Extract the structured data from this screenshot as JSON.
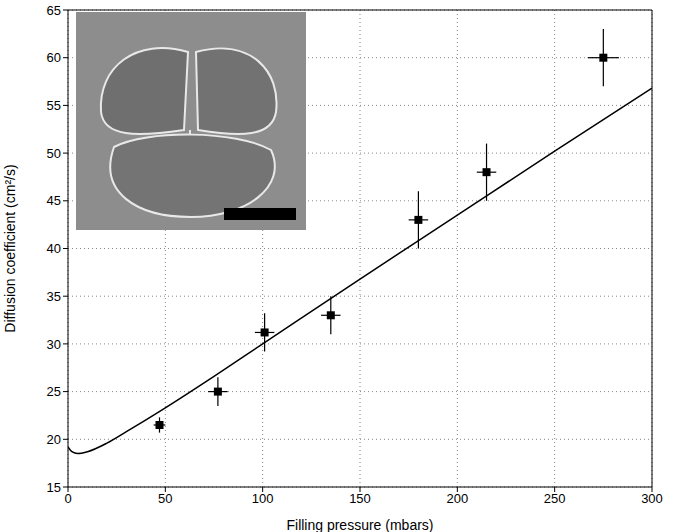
{
  "chart_data": {
    "type": "scatter",
    "x_label": "Filling pressure (mbars)",
    "y_label": "Diffusion coefficient (cm²/s)",
    "xlim": [
      0,
      300
    ],
    "xticks": [
      0,
      50,
      100,
      150,
      200,
      250,
      300
    ],
    "ylim": [
      15,
      65
    ],
    "yticks": [
      15,
      20,
      25,
      30,
      35,
      40,
      45,
      50,
      55,
      60,
      65
    ],
    "grid": true,
    "series": [
      {
        "type": "scatter",
        "color": "#000000",
        "marker": "square",
        "x": [
          47,
          77,
          101,
          135,
          180,
          215,
          275
        ],
        "values": [
          21.5,
          25,
          31.2,
          33,
          43,
          48,
          60
        ],
        "x_error": [
          3,
          5,
          5,
          5,
          5,
          5,
          8
        ],
        "y_error": [
          0.8,
          1.5,
          2,
          2,
          3,
          3,
          3
        ]
      },
      {
        "type": "line",
        "color": "#000000",
        "line_style": "solid",
        "x": [
          0,
          2,
          5,
          10,
          20,
          30,
          50,
          75,
          100,
          150,
          200,
          250,
          300
        ],
        "values": [
          19.2,
          18.7,
          18.5,
          18.7,
          19.6,
          20.8,
          23.3,
          26.6,
          30,
          36.8,
          43.5,
          50.2,
          56.8
        ]
      }
    ]
  }
}
